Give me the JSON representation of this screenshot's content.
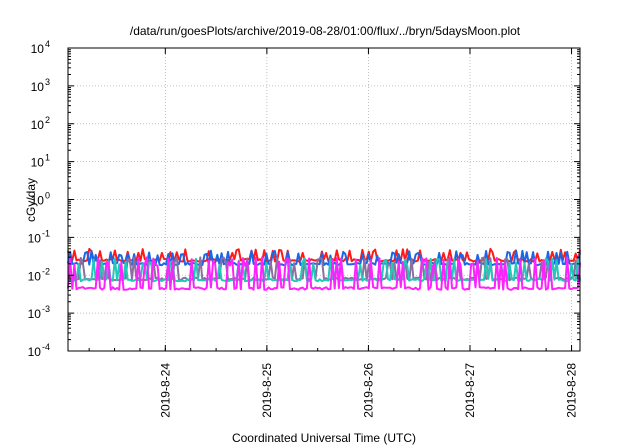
{
  "chart_data": {
    "type": "line",
    "title": "/data/run/goesPlots/archive/2019-08-28/01:00/flux/../bryn/5daysMoon.plot",
    "xlabel": "Coordinated Universal Time (UTC)",
    "ylabel": "cGy/day",
    "y_scale": "log",
    "ylim": [
      0.0001,
      10000
    ],
    "y_ticks": [
      {
        "value": 0.0001,
        "base": "10",
        "exp": "-4"
      },
      {
        "value": 0.001,
        "base": "10",
        "exp": "-3"
      },
      {
        "value": 0.01,
        "base": "10",
        "exp": "-2"
      },
      {
        "value": 0.1,
        "base": "10",
        "exp": "-1"
      },
      {
        "value": 1,
        "base": "10",
        "exp": "0"
      },
      {
        "value": 10,
        "base": "10",
        "exp": "1"
      },
      {
        "value": 100,
        "base": "10",
        "exp": "2"
      },
      {
        "value": 1000,
        "base": "10",
        "exp": "3"
      },
      {
        "value": 10000,
        "base": "10",
        "exp": "4"
      }
    ],
    "xlim": [
      "2019-08-23T01:00",
      "2019-08-28T02:00"
    ],
    "x_ticks": [
      {
        "value": "2019-08-24T00:00",
        "label": "2019-8-24"
      },
      {
        "value": "2019-08-25T00:00",
        "label": "2019-8-25"
      },
      {
        "value": "2019-08-26T00:00",
        "label": "2019-8-26"
      },
      {
        "value": "2019-08-27T00:00",
        "label": "2019-8-27"
      },
      {
        "value": "2019-08-28T00:00",
        "label": "2019-8-28"
      }
    ],
    "grid": true,
    "series": [
      {
        "color": "#ff1a1a",
        "baseline": 0.025,
        "spike_max": 0.05
      },
      {
        "color": "#1a66e6",
        "baseline": 0.02,
        "spike_max": 0.045
      },
      {
        "color": "#8a6fa0",
        "baseline": 0.008,
        "spike_max": 0.03
      },
      {
        "color": "#22c8b8",
        "baseline": 0.0075,
        "spike_max": 0.028
      },
      {
        "color": "#ff22ff",
        "baseline": 0.0045,
        "spike_max": 0.03
      }
    ]
  }
}
